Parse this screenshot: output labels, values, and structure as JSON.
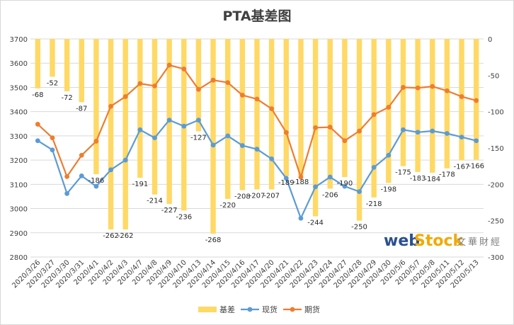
{
  "chart_data": {
    "type": "bar+line",
    "title": "PTA基差图",
    "categories": [
      "2020/3/26",
      "2020/3/27",
      "2020/3/30",
      "2020/3/31",
      "2020/4/1",
      "2020/4/2",
      "2020/4/3",
      "2020/4/7",
      "2020/4/8",
      "2020/4/9",
      "2020/4/10",
      "2020/4/13",
      "2020/4/14",
      "2020/4/15",
      "2020/4/16",
      "2020/4/17",
      "2020/4/20",
      "2020/4/21",
      "2020/4/22",
      "2020/4/23",
      "2020/4/24",
      "2020/4/27",
      "2020/4/28",
      "2020/4/29",
      "2020/4/30",
      "2020/5/6",
      "2020/5/7",
      "2020/5/8",
      "2020/5/11",
      "2020/5/12",
      "2020/5/13"
    ],
    "left_axis": {
      "min": 2800,
      "max": 3700,
      "step": 100,
      "ticks": [
        "2800",
        "2900",
        "3000",
        "3100",
        "3200",
        "3300",
        "3400",
        "3500",
        "3600",
        "3700"
      ]
    },
    "right_axis": {
      "min": -300,
      "max": 0,
      "step": 50,
      "ticks": [
        "-300",
        "-250",
        "-200",
        "-150",
        "-100",
        "-50",
        "0"
      ]
    },
    "series": [
      {
        "name": "基差",
        "type": "bar",
        "axis": "right",
        "color": "#ffd966",
        "values": [
          -68,
          -52,
          -72,
          -87,
          -186,
          -262,
          -262,
          -191,
          -214,
          -227,
          -236,
          -127,
          -268,
          -220,
          -208,
          -207,
          -207,
          -189,
          -188,
          -244,
          -206,
          -190,
          -250,
          -218,
          -198,
          -175,
          -183,
          -184,
          -178,
          -167,
          -166
        ],
        "labels": [
          "-68",
          "-52",
          "-72",
          "-87",
          "-186",
          "-262",
          "-262",
          "-191",
          "-214",
          "-227",
          "-236",
          "-127",
          "-268",
          "-220",
          "-208",
          "-207",
          "-207",
          "-189",
          "-188",
          "-244",
          "-206",
          "-190",
          "-250",
          "-218",
          "-198",
          "-175",
          "-183",
          "-184",
          "-178",
          "-167",
          "-166"
        ]
      },
      {
        "name": "现货",
        "type": "line",
        "axis": "left",
        "color": "#5b9bd5",
        "values": [
          3280,
          3242,
          3062,
          3135,
          3092,
          3160,
          3200,
          3325,
          3292,
          3365,
          3340,
          3365,
          3262,
          3300,
          3260,
          3245,
          3205,
          3125,
          2960,
          3090,
          3130,
          3092,
          3070,
          3170,
          3220,
          3325,
          3315,
          3320,
          3310,
          3295,
          3280
        ]
      },
      {
        "name": "期货",
        "type": "line",
        "axis": "left",
        "color": "#ed7d31",
        "values": [
          3348,
          3292,
          3132,
          3220,
          3278,
          3422,
          3462,
          3516,
          3506,
          3592,
          3576,
          3492,
          3530,
          3520,
          3468,
          3452,
          3412,
          3314,
          3130,
          3334,
          3336,
          3280,
          3320,
          3388,
          3418,
          3500,
          3498,
          3504,
          3486,
          3462,
          3446
        ]
      }
    ],
    "legend": {
      "position": "bottom",
      "entries": [
        "基差",
        "现货",
        "期货"
      ]
    },
    "grid": true
  },
  "watermark": {
    "web": "web",
    "stock": "Stock",
    "chinese": "文華財經"
  }
}
